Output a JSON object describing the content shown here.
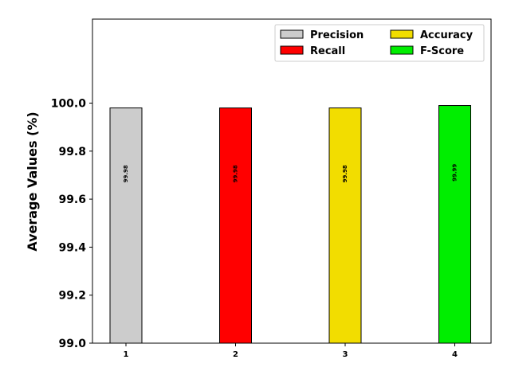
{
  "chart_data": {
    "type": "bar",
    "categories": [
      "1",
      "2",
      "3",
      "4"
    ],
    "series": [
      {
        "name": "Precision",
        "values": [
          99.98,
          null,
          null,
          null
        ],
        "color": "#cccccc"
      },
      {
        "name": "Recall",
        "values": [
          null,
          99.98,
          null,
          null
        ],
        "color": "#ff0000"
      },
      {
        "name": "Accuracy",
        "values": [
          null,
          null,
          99.98,
          null
        ],
        "color": "#f2dd00"
      },
      {
        "name": "F-Score",
        "values": [
          null,
          null,
          null,
          99.99
        ],
        "color": "#00ee00"
      }
    ],
    "values": [
      99.98,
      99.98,
      99.98,
      99.99
    ],
    "data_labels": [
      "99.98",
      "99.98",
      "99.98",
      "99.99"
    ],
    "ylabel": "Average Values (%)",
    "xlabel": "",
    "ylim": [
      99.0,
      100.35
    ],
    "yticks": [
      "99.0",
      "99.2",
      "99.4",
      "99.6",
      "99.8",
      "100.0"
    ],
    "legend_position": "top-right",
    "legend_columns": 2,
    "grid": false
  }
}
